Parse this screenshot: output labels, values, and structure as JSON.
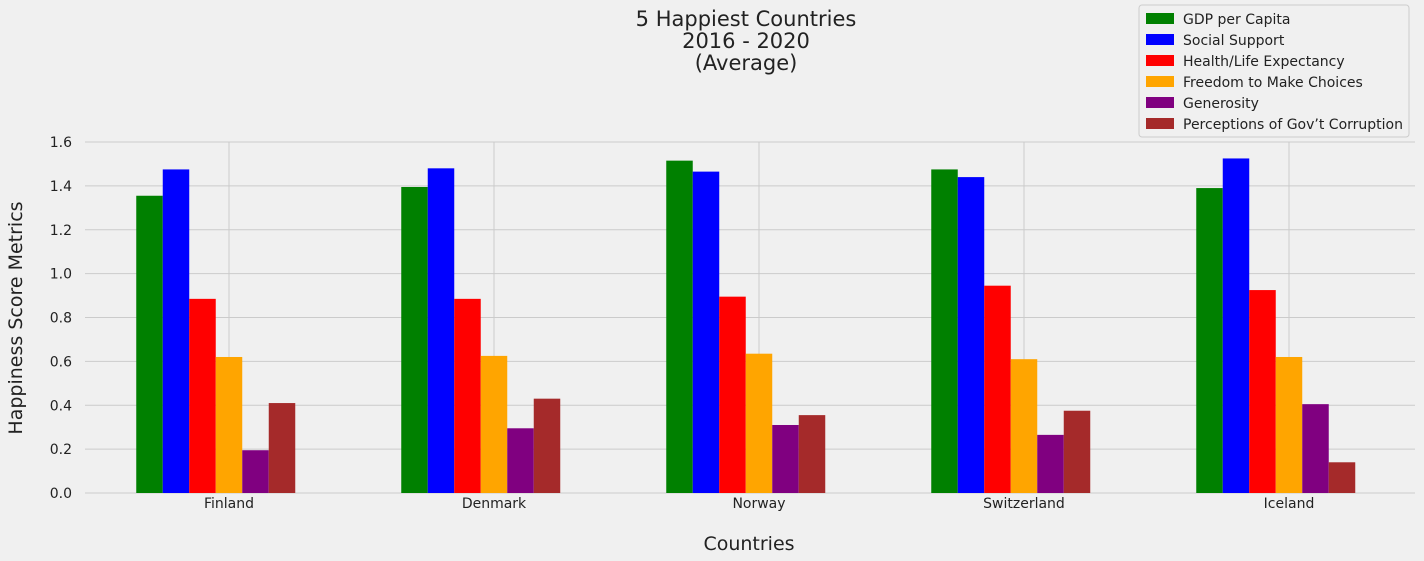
{
  "chart_data": {
    "type": "bar",
    "title_lines": [
      "5 Happiest Countries",
      "2016 - 2020",
      "(Average)"
    ],
    "xlabel": "Countries",
    "ylabel": "Happiness Score Metrics",
    "ylim": [
      0,
      1.6
    ],
    "yticks": [
      "0.0",
      "0.2",
      "0.4",
      "0.6",
      "0.8",
      "1.0",
      "1.2",
      "1.4",
      "1.6"
    ],
    "categories": [
      "Finland",
      "Denmark",
      "Norway",
      "Switzerland",
      "Iceland"
    ],
    "grid": true,
    "legend_position": "top-right",
    "series": [
      {
        "name": "GDP per Capita",
        "color": "#008000",
        "values": [
          1.355,
          1.395,
          1.515,
          1.475,
          1.39
        ]
      },
      {
        "name": "Social Support",
        "color": "#0000ff",
        "values": [
          1.475,
          1.48,
          1.465,
          1.44,
          1.525
        ]
      },
      {
        "name": "Health/Life Expectancy",
        "color": "#ff0000",
        "values": [
          0.885,
          0.885,
          0.895,
          0.945,
          0.925
        ]
      },
      {
        "name": "Freedom to Make Choices",
        "color": "#ffa500",
        "values": [
          0.62,
          0.625,
          0.635,
          0.61,
          0.62
        ]
      },
      {
        "name": "Generosity",
        "color": "#800080",
        "values": [
          0.195,
          0.295,
          0.31,
          0.265,
          0.405
        ]
      },
      {
        "name": "Perceptions of Gov’t Corruption",
        "color": "#a52a2a",
        "values": [
          0.41,
          0.43,
          0.355,
          0.375,
          0.14
        ]
      }
    ]
  }
}
